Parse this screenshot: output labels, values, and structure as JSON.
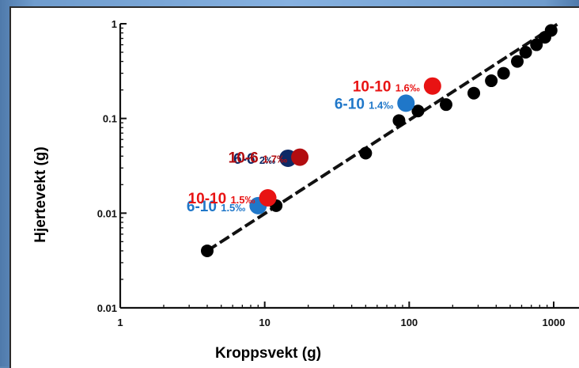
{
  "chart_data": {
    "type": "scatter",
    "xlabel": "Kroppsvekt (g)",
    "ylabel": "Hjertevekt (g)",
    "xscale": "log",
    "yscale": "log",
    "xlim": [
      1,
      1000
    ],
    "ylim": [
      0.001,
      1
    ],
    "x_ticks": [
      "1",
      "10",
      "100",
      "1000"
    ],
    "y_ticks": [
      "0.01",
      "0.01",
      "0.1",
      "1"
    ],
    "grid": false,
    "trend_line": {
      "style": "dashed",
      "color": "#111111"
    },
    "series": [
      {
        "color": "#000000",
        "points": [
          {
            "x": 4,
            "y": 0.004
          },
          {
            "x": 12,
            "y": 0.012
          },
          {
            "x": 50,
            "y": 0.043
          },
          {
            "x": 85,
            "y": 0.095
          },
          {
            "x": 115,
            "y": 0.12
          },
          {
            "x": 180,
            "y": 0.14
          },
          {
            "x": 280,
            "y": 0.185
          },
          {
            "x": 370,
            "y": 0.25
          },
          {
            "x": 450,
            "y": 0.3
          },
          {
            "x": 560,
            "y": 0.4
          },
          {
            "x": 640,
            "y": 0.5
          },
          {
            "x": 760,
            "y": 0.6
          },
          {
            "x": 870,
            "y": 0.72
          },
          {
            "x": 960,
            "y": 0.85
          }
        ]
      }
    ],
    "highlights": [
      {
        "label": "6-10",
        "ratio": "1.5‰",
        "color": "#1f77c9",
        "x": 9,
        "y": 0.012
      },
      {
        "label": "10-10",
        "ratio": "1.5‰",
        "color": "#e81313",
        "x": 10.5,
        "y": 0.0145
      },
      {
        "label": "6-6",
        "ratio": "2‰",
        "color": "#0e2a66",
        "x": 14.5,
        "y": 0.038
      },
      {
        "label": "10-6",
        "ratio": "1.7‰",
        "color": "#b20d10",
        "x": 17.5,
        "y": 0.039
      },
      {
        "label": "6-10",
        "ratio": "1.4‰",
        "color": "#1f77c9",
        "x": 95,
        "y": 0.145
      },
      {
        "label": "10-10",
        "ratio": "1.6‰",
        "color": "#e81313",
        "x": 145,
        "y": 0.22
      }
    ]
  }
}
